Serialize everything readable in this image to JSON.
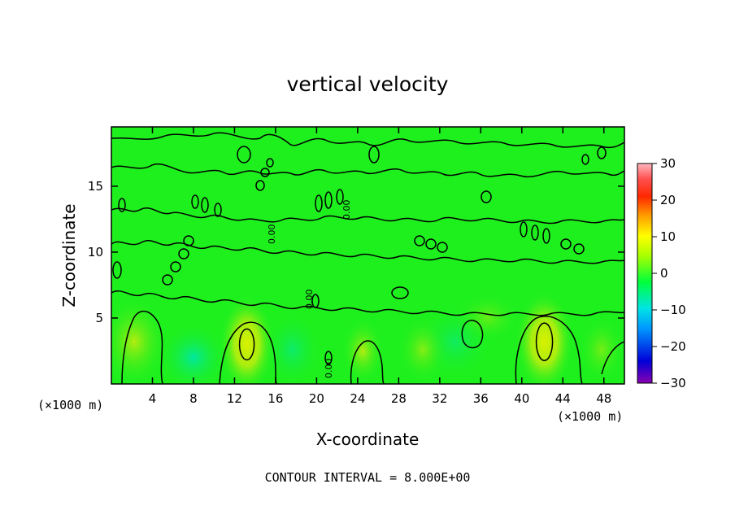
{
  "chart_data": {
    "type": "heatmap",
    "title": "vertical velocity",
    "xlabel": "X-coordinate",
    "ylabel": "Z-coordinate",
    "x_unit_label": "(×1000 m)",
    "xlim": [
      0,
      50
    ],
    "ylim": [
      0,
      19.5
    ],
    "x_ticks": [
      4,
      8,
      12,
      16,
      20,
      24,
      28,
      32,
      36,
      40,
      44,
      48
    ],
    "y_ticks": [
      5,
      10,
      15
    ],
    "colorbar": {
      "min": -30,
      "max": 30,
      "ticks": [
        30,
        20,
        10,
        0,
        -10,
        -20,
        -30
      ],
      "tick_labels": [
        "30",
        "20",
        "10",
        "0",
        "−10",
        "−20",
        "−30"
      ],
      "colors": [
        "#8a00b0",
        "#0000d8",
        "#0098ff",
        "#00e4e4",
        "#00ff3c",
        "#a8ff00",
        "#ffff00",
        "#ffa000",
        "#ff2800",
        "#ff5050",
        "#ffb8c0"
      ]
    },
    "contour_interval": 8.0,
    "contour_line_label": "0.00",
    "features": [
      {
        "kind": "updraft",
        "x": 13.2,
        "z": 3.0,
        "value": 8
      },
      {
        "kind": "updraft",
        "x": 42.2,
        "z": 3.2,
        "value": 8
      },
      {
        "kind": "weak-updraft",
        "x": 24.5,
        "z": 2.5,
        "value": 5
      },
      {
        "kind": "downdraft",
        "x": 8.0,
        "z": 2.0,
        "value": -3
      }
    ],
    "grid": false
  },
  "footer": {
    "contour_text": "CONTOUR INTERVAL = 8.000E+00"
  }
}
